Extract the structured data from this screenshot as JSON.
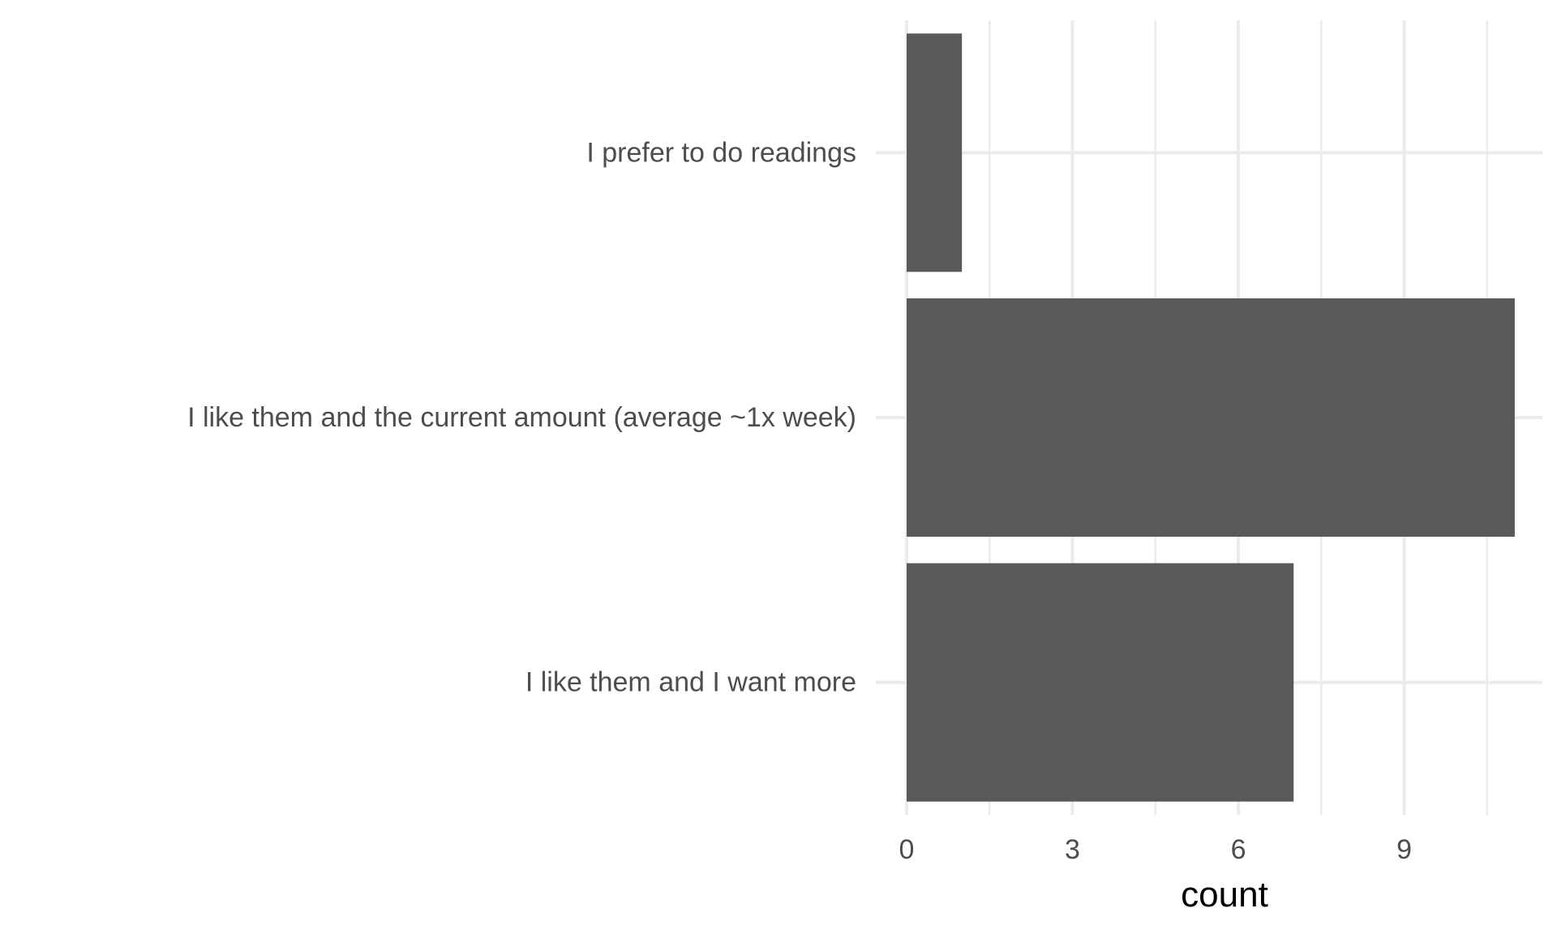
{
  "chart_data": {
    "type": "bar",
    "orientation": "horizontal",
    "categories": [
      "I prefer to do readings",
      "I like them and the current amount (average ~1x week)",
      "I like them and I want more"
    ],
    "values": [
      1,
      11,
      7
    ],
    "xlabel": "count",
    "ylabel": "",
    "xlim": [
      0,
      11.5
    ],
    "xticks": [
      0,
      3,
      6,
      9
    ],
    "grid": true,
    "colors": {
      "bar": "#595959",
      "grid": "#ebebeb",
      "tick_text": "#4d4d4d",
      "title_text": "#000000"
    }
  }
}
